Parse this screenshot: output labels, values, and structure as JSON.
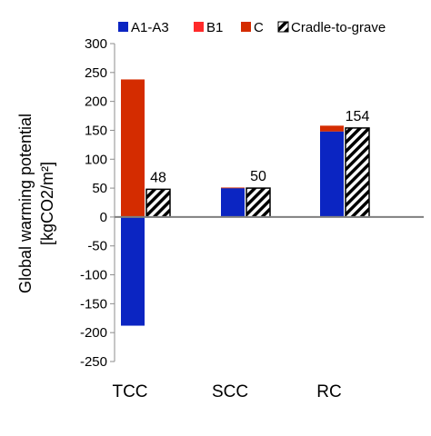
{
  "chart_data": {
    "type": "bar",
    "stacked": true,
    "categories": [
      "TCC",
      "SCC",
      "RC"
    ],
    "series": [
      {
        "name": "A1-A3",
        "values": [
          -188,
          50,
          148
        ],
        "color": "#0b25c2",
        "pattern": "solid"
      },
      {
        "name": "B1",
        "values": [
          0,
          0,
          0
        ],
        "color": "#ff2a2a",
        "pattern": "solid"
      },
      {
        "name": "C",
        "values": [
          238,
          1,
          10
        ],
        "color": "#d42c00",
        "pattern": "solid"
      },
      {
        "name": "Cradle-to-grave",
        "values": [
          48,
          50,
          154
        ],
        "color": "#000000",
        "pattern": "diagonal-hatch"
      }
    ],
    "data_labels": [
      "48",
      "50",
      "154"
    ],
    "ylabel_line1": "Global warming potential",
    "ylabel_line2": "[kgCO2/m²]",
    "ylim": [
      -250,
      300
    ],
    "yticks": [
      300,
      250,
      200,
      150,
      100,
      50,
      0,
      -50,
      -100,
      -150,
      -200,
      -250
    ],
    "ytick_labels": [
      "300",
      "250",
      "200",
      "150",
      "100",
      "50",
      "0",
      "-50",
      "-100",
      "-150",
      "-200",
      "-250"
    ],
    "grid": false,
    "legend_position": "top"
  }
}
